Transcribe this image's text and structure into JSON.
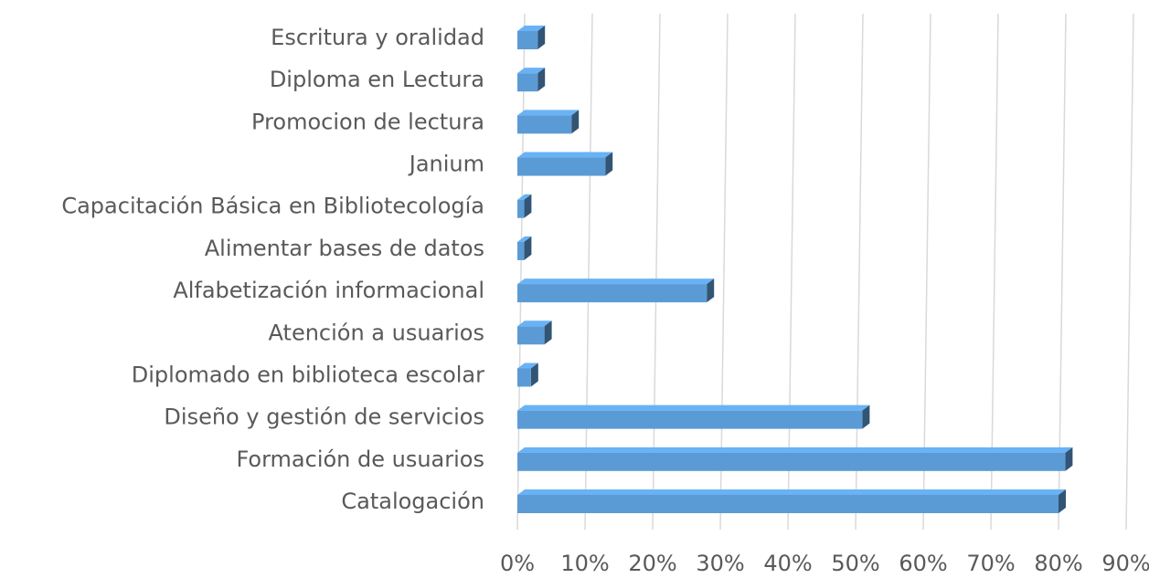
{
  "chart_data": {
    "type": "bar",
    "orientation": "horizontal",
    "three_d": true,
    "categories": [
      "Escritura y oralidad",
      "Diploma en Lectura",
      "Promocion de lectura",
      "Janium",
      "Capacitación Básica en Bibliotecología",
      "Alimentar bases de datos",
      "Alfabetización informacional",
      "Atención a usuarios",
      "Diplomado en biblioteca escolar",
      "Diseño y gestión de servicios",
      "Formación de usuarios",
      "Catalogación"
    ],
    "values": [
      3,
      3,
      8,
      13,
      1,
      1,
      28,
      4,
      2,
      51,
      81,
      80
    ],
    "color": "#5b9bd5",
    "xlim": [
      0,
      90
    ],
    "xticks": [
      {
        "value": 0,
        "label": "0%"
      },
      {
        "value": 10,
        "label": "10%"
      },
      {
        "value": 20,
        "label": "20%"
      },
      {
        "value": 30,
        "label": "30%"
      },
      {
        "value": 40,
        "label": "40%"
      },
      {
        "value": 50,
        "label": "50%"
      },
      {
        "value": 60,
        "label": "60%"
      },
      {
        "value": 70,
        "label": "70%"
      },
      {
        "value": 80,
        "label": "80%"
      },
      {
        "value": 90,
        "label": "90%"
      }
    ],
    "grid": true
  }
}
